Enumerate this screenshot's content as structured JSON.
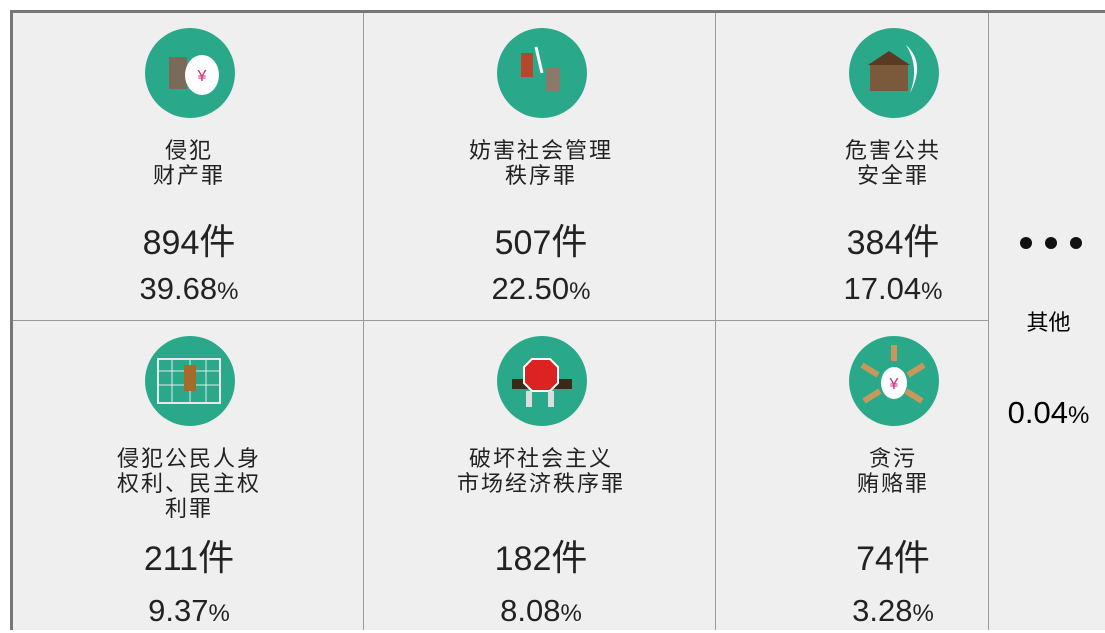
{
  "cells": [
    {
      "label": [
        "侵犯",
        "财产罪"
      ],
      "count": 894,
      "unit": "件",
      "percent": "39.68",
      "percent_unit": "%"
    },
    {
      "label": [
        "妨害社会管理",
        "秩序罪"
      ],
      "count": 507,
      "unit": "件",
      "percent": "22.50",
      "percent_unit": "%"
    },
    {
      "label": [
        "危害公共",
        "安全罪"
      ],
      "count": 384,
      "unit": "件",
      "percent": "17.04",
      "percent_unit": "%"
    },
    {
      "label": [
        "侵犯公民人身",
        "权利、民主权",
        "利罪"
      ],
      "count": 211,
      "unit": "件",
      "percent": "9.37",
      "percent_unit": "%"
    },
    {
      "label": [
        "破坏社会主义",
        "市场经济秩序罪"
      ],
      "count": 182,
      "unit": "件",
      "percent": "8.08",
      "percent_unit": "%"
    },
    {
      "label": [
        "贪污",
        "贿赂罪"
      ],
      "count": 74,
      "unit": "件",
      "percent": "3.28",
      "percent_unit": "%"
    }
  ],
  "other": {
    "label": "其他",
    "percent": "0.04",
    "percent_unit": "%"
  }
}
